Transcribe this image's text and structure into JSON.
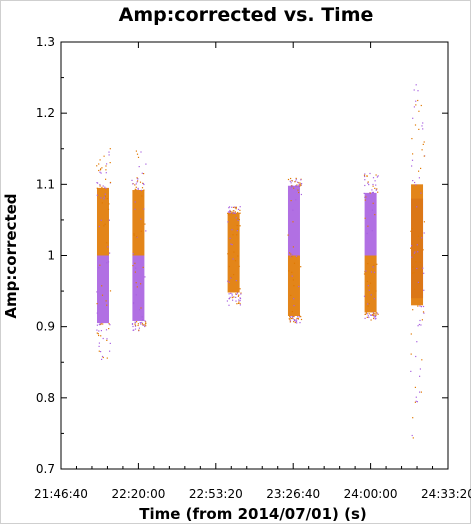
{
  "chart_data": {
    "type": "scatter",
    "title": "Amp:corrected vs. Time",
    "xlabel": "Time (from 2014/07/01) (s)",
    "ylabel": "Amp:corrected",
    "xlim": [
      "21:46:40",
      "24:33:20"
    ],
    "ylim": [
      0.7,
      1.3
    ],
    "x_ticks": [
      "21:46:40",
      "22:20:00",
      "22:53:20",
      "23:26:40",
      "24:00:00",
      "24:33:20"
    ],
    "y_ticks": [
      "0.7",
      "0.8",
      "0.9",
      "1",
      "1.1",
      "1.2",
      "1.3"
    ],
    "grid": false,
    "colors": {
      "orange": "#e07800",
      "purple": "#a860e0"
    },
    "scans": [
      {
        "time": "22:04:45",
        "orange_range": [
          1.0,
          1.095
        ],
        "purple_range": [
          0.905,
          1.0
        ],
        "min": 0.848,
        "max": 1.16
      },
      {
        "time": "22:20:00",
        "orange_range": [
          1.0,
          1.092
        ],
        "purple_range": [
          0.908,
          1.0
        ],
        "min": 0.895,
        "max": 1.15
      },
      {
        "time": "23:01:00",
        "orange_range": [
          0.948,
          1.06
        ],
        "purple_range": null,
        "min": 0.93,
        "max": 1.07
      },
      {
        "time": "23:27:00",
        "orange_range": [
          0.915,
          1.0
        ],
        "purple_range": [
          1.0,
          1.098
        ],
        "min": 0.905,
        "max": 1.11
      },
      {
        "time": "24:00:00",
        "orange_range": [
          0.92,
          1.0
        ],
        "purple_range": [
          1.0,
          1.088
        ],
        "min": 0.91,
        "max": 1.12
      },
      {
        "time": "24:20:00",
        "orange_range": [
          0.93,
          1.1
        ],
        "purple_range": [
          0.94,
          1.08
        ],
        "min": 0.735,
        "max": 1.245
      }
    ]
  }
}
